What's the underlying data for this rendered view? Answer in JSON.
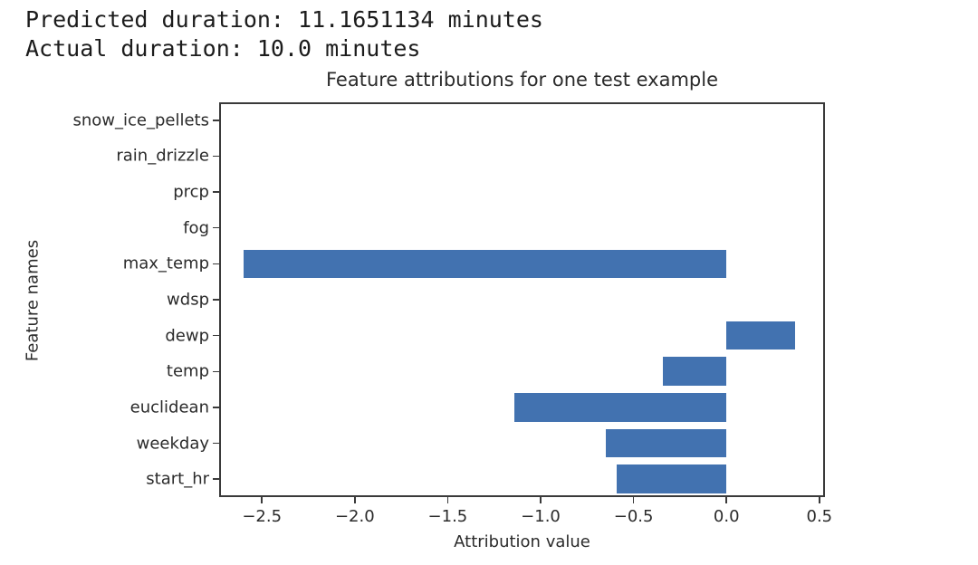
{
  "header": {
    "line1": "Predicted duration: 11.1651134 minutes",
    "line2": "Actual duration: 10.0 minutes"
  },
  "chart_data": {
    "type": "bar",
    "orientation": "horizontal",
    "title": "Feature attributions for one test example",
    "xlabel": "Attribution value",
    "ylabel": "Feature names",
    "categories": [
      "snow_ice_pellets",
      "rain_drizzle",
      "prcp",
      "fog",
      "max_temp",
      "wdsp",
      "dewp",
      "temp",
      "euclidean",
      "weekday",
      "start_hr"
    ],
    "values": [
      0,
      0,
      0,
      0,
      -2.6,
      0,
      0.37,
      -0.34,
      -1.14,
      -0.65,
      -0.59
    ],
    "xlim": [
      -2.73,
      0.53
    ],
    "x_ticks": [
      -2.5,
      -2.0,
      -1.5,
      -1.0,
      -0.5,
      0.0,
      0.5
    ],
    "x_tick_labels": [
      "−2.5",
      "−2.0",
      "−1.5",
      "−1.0",
      "−0.5",
      "0.0",
      "0.5"
    ],
    "bar_color": "#4272b0",
    "grid": false,
    "legend_position": "none"
  }
}
